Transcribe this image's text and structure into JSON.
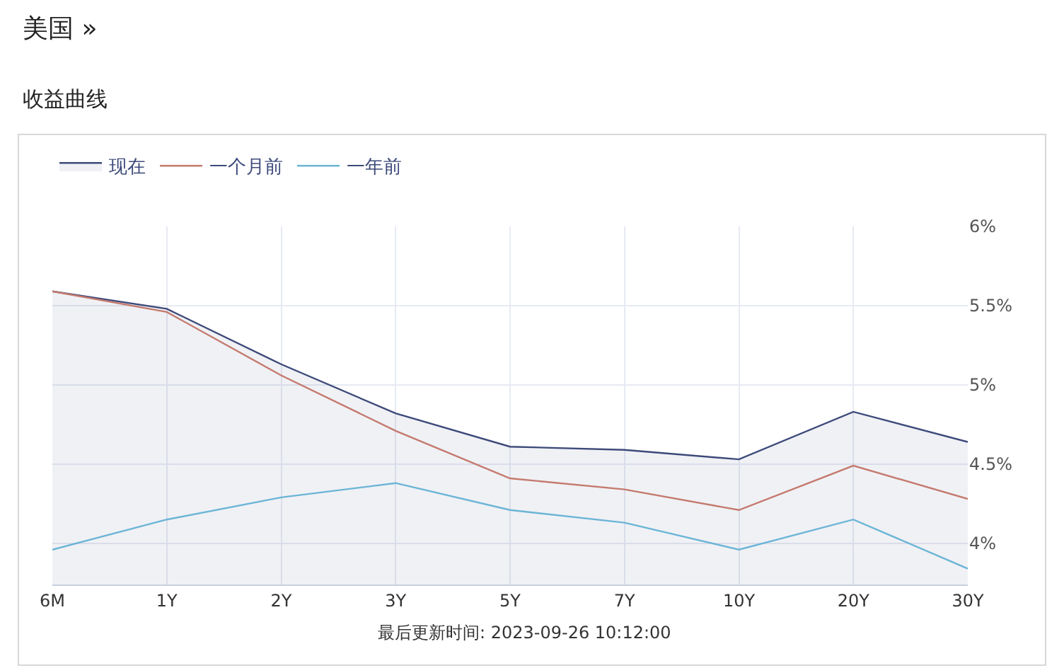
{
  "chart_data": {
    "type": "line",
    "title": "美国 »",
    "subtitle": "收益曲线",
    "annotations": [
      "最后更新时间: 2023-09-26 10:12:00"
    ],
    "categories": [
      "6M",
      "1Y",
      "2Y",
      "3Y",
      "5Y",
      "7Y",
      "10Y",
      "20Y",
      "30Y"
    ],
    "series": [
      {
        "name": "现在",
        "type": "area",
        "color": "#3d4a7a",
        "values": [
          5.59,
          5.48,
          5.13,
          4.82,
          4.61,
          4.59,
          4.53,
          4.83,
          4.64
        ]
      },
      {
        "name": "一个月前",
        "color": "#c47a6e",
        "values": [
          5.59,
          5.46,
          5.06,
          4.71,
          4.41,
          4.34,
          4.21,
          4.49,
          4.28
        ]
      },
      {
        "name": "一年前",
        "color": "#6bb5d6",
        "values": [
          3.96,
          4.15,
          4.29,
          4.38,
          4.21,
          4.13,
          3.96,
          4.15,
          3.84
        ]
      }
    ],
    "ylim": [
      3.74,
      6
    ],
    "yticks": [
      {
        "value": 4,
        "label": "4%"
      },
      {
        "value": 4.5,
        "label": "4.5%"
      },
      {
        "value": 5,
        "label": "5%"
      },
      {
        "value": 5.5,
        "label": "5.5%"
      },
      {
        "value": 6,
        "label": "6%"
      }
    ],
    "grid": true,
    "legend": "top left",
    "marker": "none",
    "line_style": "solid"
  }
}
